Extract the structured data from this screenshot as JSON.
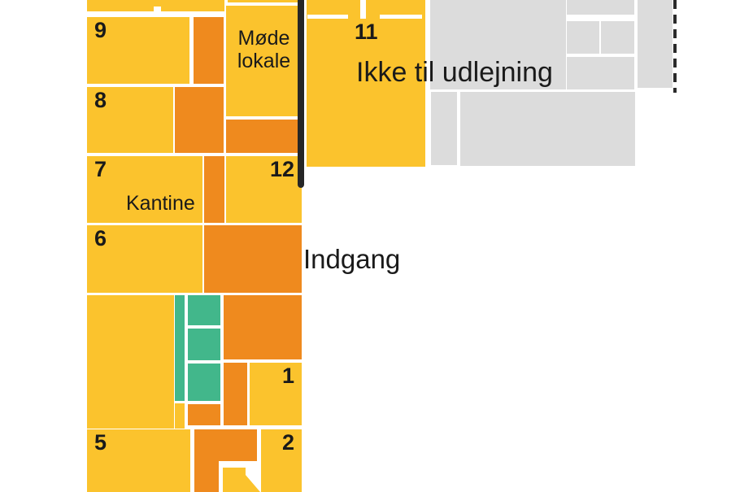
{
  "palette": {
    "available_yellow": "#FBC32D",
    "corridor_orange": "#EF8A1E",
    "facility_green": "#42B78B",
    "not_for_rent_gray": "#DCDCDC",
    "divider_dark": "#262626",
    "text": "#1A1A1A",
    "background": "#FFFFFF"
  },
  "annotations": {
    "not_for_rent": "Ikke til udlejning",
    "entrance": "Indgang"
  },
  "rooms": {
    "r9": "9",
    "r8": "8",
    "r7": "7",
    "r6": "6",
    "r5": "5",
    "r11": "11",
    "r12": "12",
    "r1": "1",
    "r2": "2",
    "canteen": "Kantine",
    "meeting_room": "Møde lokale"
  }
}
